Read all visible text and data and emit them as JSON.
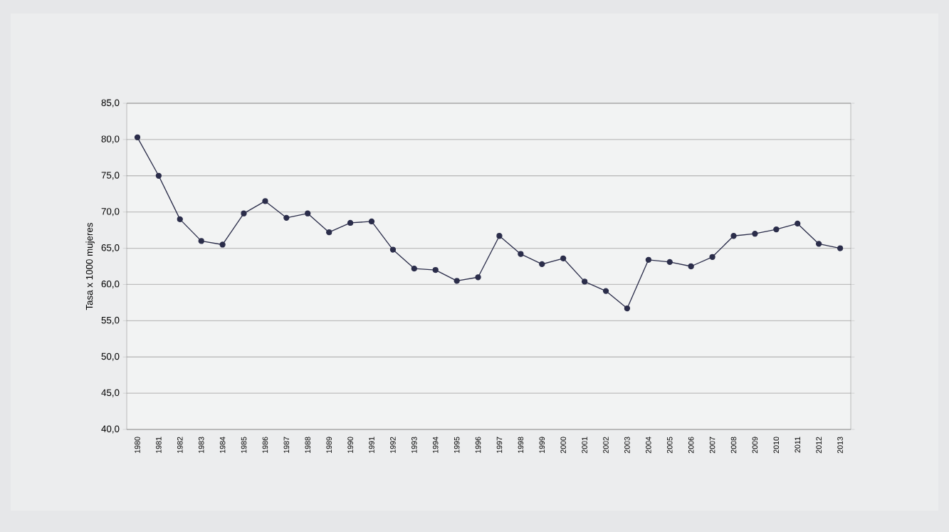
{
  "chart_data": {
    "type": "line",
    "ylabel": "Tasa x 1000 mujeres",
    "categories": [
      "1980",
      "1981",
      "1982",
      "1983",
      "1984",
      "1985",
      "1986",
      "1987",
      "1988",
      "1989",
      "1990",
      "1991",
      "1992",
      "1993",
      "1994",
      "1995",
      "1996",
      "1997",
      "1998",
      "1999",
      "2000",
      "2001",
      "2002",
      "2003",
      "2004",
      "2005",
      "2006",
      "2007",
      "2008",
      "2009",
      "2010",
      "2011",
      "2012",
      "2013"
    ],
    "series": [
      {
        "color": "#2b2d4a",
        "values": [
          80.3,
          75.0,
          69.0,
          66.0,
          65.5,
          69.8,
          71.5,
          69.2,
          69.8,
          67.2,
          68.5,
          68.7,
          64.8,
          62.2,
          62.0,
          60.5,
          61.0,
          66.7,
          64.2,
          62.8,
          63.6,
          60.4,
          59.1,
          56.7,
          63.4,
          63.1,
          62.5,
          63.8,
          66.7,
          67.0,
          67.6,
          68.4,
          65.6,
          65.0
        ]
      }
    ],
    "ylim": [
      40,
      85
    ],
    "yticks": [
      {
        "value": 40,
        "label": "40,0"
      },
      {
        "value": 45,
        "label": "45,0"
      },
      {
        "value": 50,
        "label": "50,0"
      },
      {
        "value": 55,
        "label": "55,0"
      },
      {
        "value": 60,
        "label": "60,0"
      },
      {
        "value": 65,
        "label": "65,0"
      },
      {
        "value": 70,
        "label": "70,0"
      },
      {
        "value": 75,
        "label": "75,0"
      },
      {
        "value": 80,
        "label": "80,0"
      },
      {
        "value": 85,
        "label": "85,0"
      }
    ],
    "grid": "y",
    "marker": "circle",
    "line_style": "solid"
  }
}
